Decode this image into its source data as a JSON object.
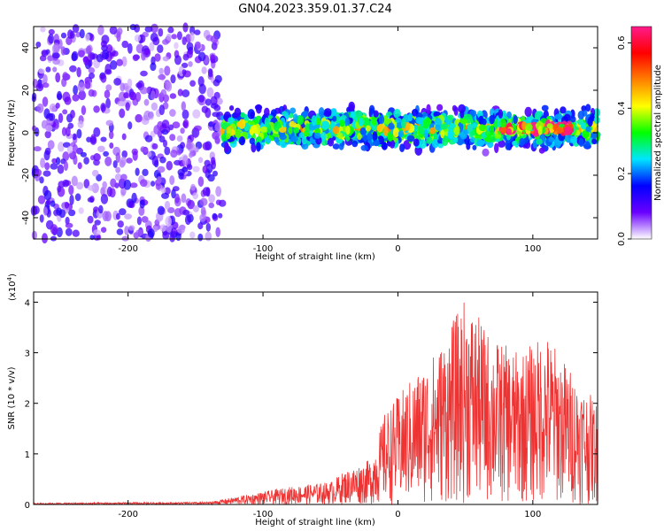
{
  "title": "GN04.2023.359.01.37.C24",
  "chart_data": [
    {
      "type": "heatmap",
      "xlabel": "Height of straight line (km)",
      "ylabel": "Frequency (Hz)",
      "xlim": [
        -270,
        148
      ],
      "ylim": [
        -50,
        50
      ],
      "xticks": [
        -200,
        -100,
        0,
        100
      ],
      "yticks": [
        -40,
        -20,
        0,
        20,
        40
      ],
      "colorbar": {
        "label": "Normalized spectral amplitude",
        "range": [
          0.0,
          0.65
        ],
        "ticks": [
          0.0,
          0.2,
          0.4,
          0.6
        ],
        "colors": [
          "#ffffff",
          "#6a00ff",
          "#0000ff",
          "#00e5ff",
          "#00ff00",
          "#ffff00",
          "#ff7f00",
          "#ff0000",
          "#ff1a8c"
        ]
      },
      "regions": [
        {
          "description": "broadband noise",
          "x": [
            -270,
            -130
          ],
          "y": [
            -50,
            50
          ],
          "amplitude": 0.08
        },
        {
          "description": "signal band",
          "x": [
            -130,
            148
          ],
          "y": [
            -12,
            12
          ],
          "amplitude": 0.3
        },
        {
          "description": "peak cluster",
          "x": [
            75,
            130
          ],
          "y": [
            -3,
            3
          ],
          "amplitude": 0.6
        }
      ],
      "grid": false
    },
    {
      "type": "line",
      "xlabel": "Height of straight line (km)",
      "ylabel": "SNR (10 * v/v)",
      "y_scale_label": "(x10",
      "y_scale_exp": "4",
      "y_scale_close": ")",
      "xlim": [
        -270,
        148
      ],
      "ylim": [
        0,
        4.2
      ],
      "xticks": [
        -200,
        -100,
        0,
        100
      ],
      "yticks": [
        0,
        1,
        2,
        3,
        4
      ],
      "color": "#ee3333",
      "envelope": [
        {
          "x": -270,
          "y": 0.03
        },
        {
          "x": -140,
          "y": 0.05
        },
        {
          "x": -120,
          "y": 0.15
        },
        {
          "x": -80,
          "y": 0.35
        },
        {
          "x": -50,
          "y": 0.45
        },
        {
          "x": -40,
          "y": 0.65
        },
        {
          "x": -20,
          "y": 0.9
        },
        {
          "x": -10,
          "y": 1.8
        },
        {
          "x": 10,
          "y": 2.5
        },
        {
          "x": 30,
          "y": 3.1
        },
        {
          "x": 50,
          "y": 4.1
        },
        {
          "x": 70,
          "y": 3.3
        },
        {
          "x": 90,
          "y": 3.0
        },
        {
          "x": 110,
          "y": 3.4
        },
        {
          "x": 130,
          "y": 2.6
        },
        {
          "x": 148,
          "y": 2.0
        }
      ],
      "grid": false
    }
  ]
}
